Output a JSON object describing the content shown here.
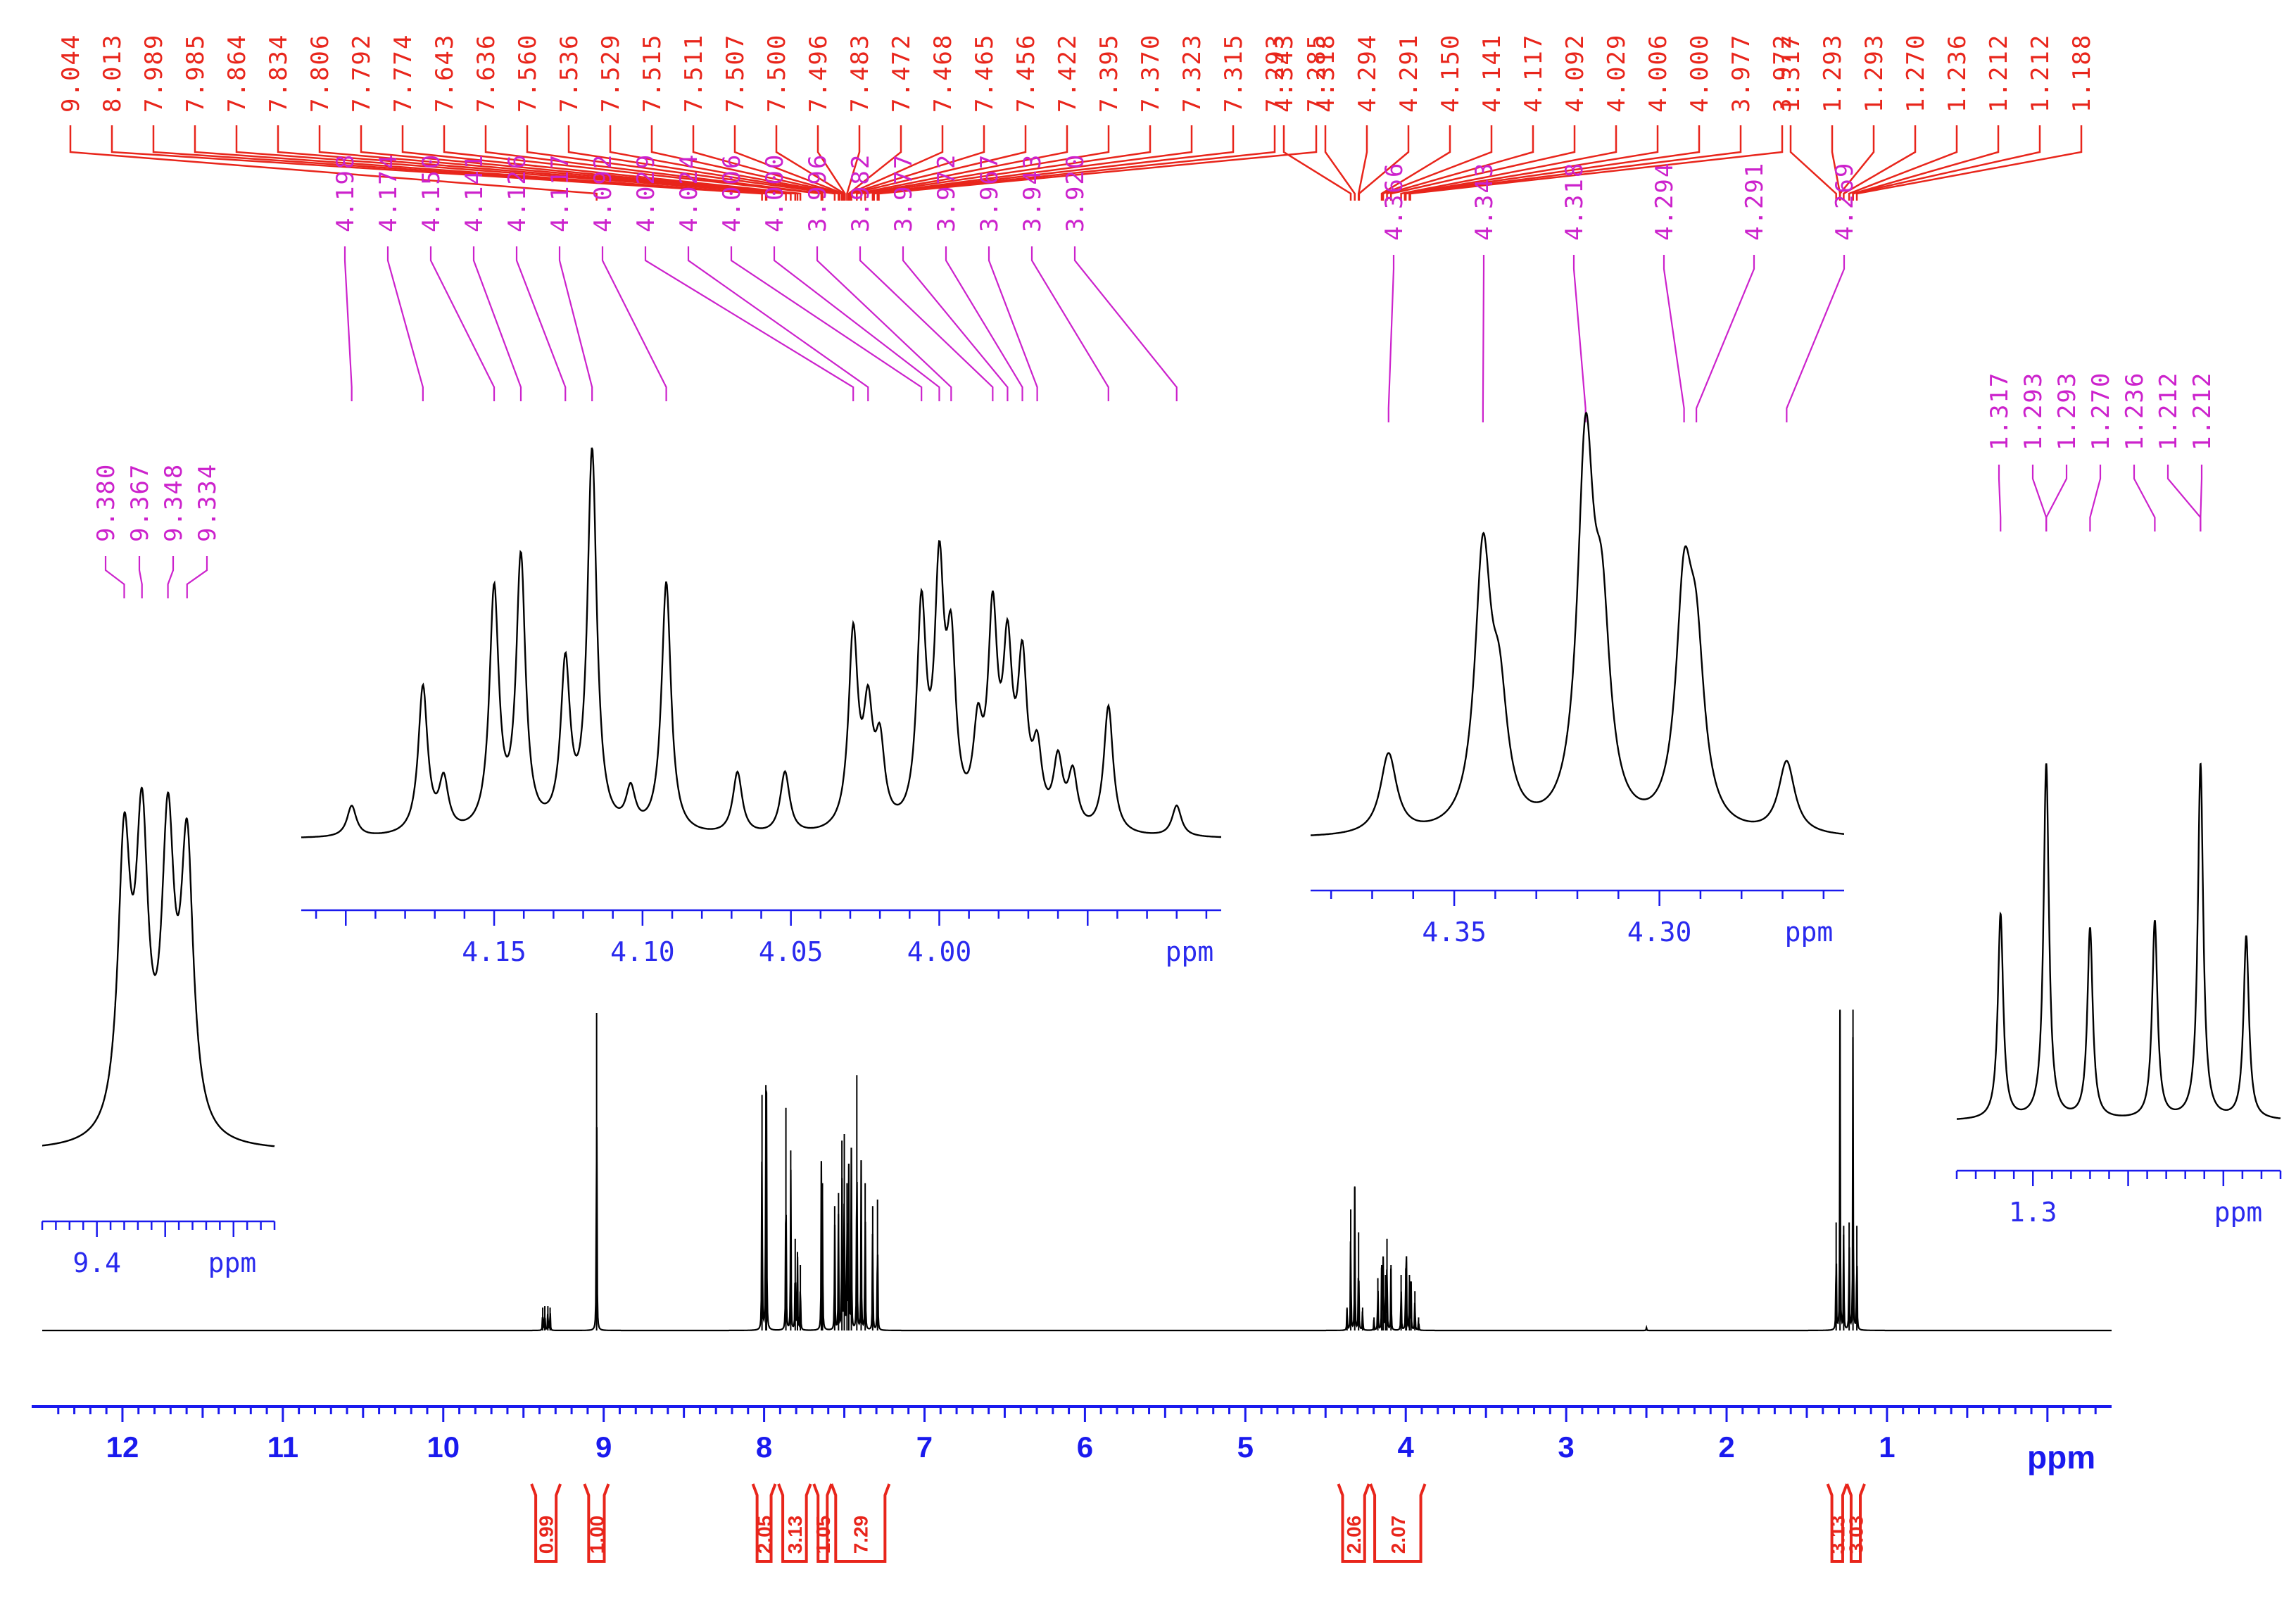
{
  "colors": {
    "spectrum": "#000000",
    "peak_labels": "#e8251b",
    "zoom_labels": "#cc22cc",
    "axis": "#1a1aee",
    "integral": "#e8251b"
  },
  "chart_data": {
    "type": "line",
    "title": "",
    "xlabel": "ppm",
    "x_reversed": true,
    "xlim": [
      12.5,
      -0.4
    ],
    "main_axis_ticks": [
      "12",
      "11",
      "10",
      "9",
      "8",
      "7",
      "6",
      "5",
      "4",
      "3",
      "2",
      "1"
    ],
    "peak_picking": {
      "group1": [
        "9.044",
        "8.013",
        "7.989",
        "7.985",
        "7.864",
        "7.834",
        "7.806",
        "7.792",
        "7.774",
        "7.643",
        "7.636",
        "7.560",
        "7.536",
        "7.529",
        "7.515",
        "7.511",
        "7.507",
        "7.500",
        "7.496",
        "7.483",
        "7.472",
        "7.468",
        "7.465",
        "7.456",
        "7.422",
        "7.395",
        "7.370",
        "7.323",
        "7.315",
        "7.293",
        "7.285"
      ],
      "group2": [
        "4.343",
        "4.318",
        "4.294",
        "4.291",
        "4.150",
        "4.141",
        "4.117",
        "4.092",
        "4.029",
        "4.006",
        "4.000",
        "3.977",
        "3.972"
      ],
      "group3": [
        "1.317",
        "1.293",
        "1.293",
        "1.270",
        "1.236",
        "1.212",
        "1.212",
        "1.188"
      ]
    },
    "peaks": [
      {
        "ppm": 9.38,
        "h": 0.07
      },
      {
        "ppm": 9.367,
        "h": 0.075
      },
      {
        "ppm": 9.348,
        "h": 0.075
      },
      {
        "ppm": 9.334,
        "h": 0.07
      },
      {
        "ppm": 9.044,
        "h": 0.97
      },
      {
        "ppm": 8.013,
        "h": 0.72
      },
      {
        "ppm": 7.989,
        "h": 0.75
      },
      {
        "ppm": 7.985,
        "h": 0.62
      },
      {
        "ppm": 7.864,
        "h": 0.68
      },
      {
        "ppm": 7.834,
        "h": 0.55
      },
      {
        "ppm": 7.806,
        "h": 0.28
      },
      {
        "ppm": 7.792,
        "h": 0.24
      },
      {
        "ppm": 7.774,
        "h": 0.2
      },
      {
        "ppm": 7.643,
        "h": 0.5
      },
      {
        "ppm": 7.636,
        "h": 0.45
      },
      {
        "ppm": 7.56,
        "h": 0.38
      },
      {
        "ppm": 7.536,
        "h": 0.42
      },
      {
        "ppm": 7.515,
        "h": 0.58
      },
      {
        "ppm": 7.5,
        "h": 0.6
      },
      {
        "ppm": 7.483,
        "h": 0.45
      },
      {
        "ppm": 7.472,
        "h": 0.5
      },
      {
        "ppm": 7.456,
        "h": 0.55
      },
      {
        "ppm": 7.422,
        "h": 0.78
      },
      {
        "ppm": 7.395,
        "h": 0.52
      },
      {
        "ppm": 7.37,
        "h": 0.45
      },
      {
        "ppm": 7.323,
        "h": 0.38
      },
      {
        "ppm": 7.293,
        "h": 0.4
      },
      {
        "ppm": 4.366,
        "h": 0.07
      },
      {
        "ppm": 4.343,
        "h": 0.37
      },
      {
        "ppm": 4.318,
        "h": 0.44
      },
      {
        "ppm": 4.294,
        "h": 0.3
      },
      {
        "ppm": 4.269,
        "h": 0.07
      },
      {
        "ppm": 4.198,
        "h": 0.04
      },
      {
        "ppm": 4.174,
        "h": 0.16
      },
      {
        "ppm": 4.15,
        "h": 0.2
      },
      {
        "ppm": 4.141,
        "h": 0.22
      },
      {
        "ppm": 4.126,
        "h": 0.17
      },
      {
        "ppm": 4.117,
        "h": 0.28
      },
      {
        "ppm": 4.092,
        "h": 0.2
      },
      {
        "ppm": 4.029,
        "h": 0.17
      },
      {
        "ppm": 4.0,
        "h": 0.19
      },
      {
        "ppm": 3.996,
        "h": 0.21
      },
      {
        "ppm": 3.977,
        "h": 0.17
      },
      {
        "ppm": 3.967,
        "h": 0.15
      },
      {
        "ppm": 3.943,
        "h": 0.12
      },
      {
        "ppm": 3.92,
        "h": 0.04
      },
      {
        "ppm": 2.5,
        "h": 0.01
      },
      {
        "ppm": 1.317,
        "h": 0.33
      },
      {
        "ppm": 1.293,
        "h": 0.98
      },
      {
        "ppm": 1.27,
        "h": 0.32
      },
      {
        "ppm": 1.236,
        "h": 0.33
      },
      {
        "ppm": 1.212,
        "h": 0.98
      },
      {
        "ppm": 1.188,
        "h": 0.32
      }
    ],
    "integrals": [
      {
        "value": "0.99",
        "from": 9.45,
        "to": 9.27
      },
      {
        "value": "1.00",
        "from": 9.12,
        "to": 8.97
      },
      {
        "value": "2.05",
        "from": 8.07,
        "to": 7.93
      },
      {
        "value": "3.13",
        "from": 7.91,
        "to": 7.71
      },
      {
        "value": "1.05",
        "from": 7.69,
        "to": 7.58
      },
      {
        "value": "7.29",
        "from": 7.58,
        "to": 7.22
      },
      {
        "value": "2.06",
        "from": 4.42,
        "to": 4.23
      },
      {
        "value": "2.07",
        "from": 4.22,
        "to": 3.88
      },
      {
        "value": "3.13",
        "from": 1.37,
        "to": 1.25
      },
      {
        "value": "3.03",
        "from": 1.25,
        "to": 1.14
      }
    ],
    "insets": [
      {
        "name": "inset-9.4",
        "xlim": [
          9.44,
          9.27
        ],
        "labeled_peaks": [
          "9.380",
          "9.367",
          "9.348",
          "9.334"
        ],
        "peaks": [
          {
            "ppm": 9.38,
            "h": 0.93
          },
          {
            "ppm": 9.367,
            "h": 0.96
          },
          {
            "ppm": 9.348,
            "h": 0.96
          },
          {
            "ppm": 9.334,
            "h": 0.93
          }
        ],
        "width": 0.0055,
        "axis_ticks": [
          "9.4"
        ],
        "unit": "ppm"
      },
      {
        "name": "inset-4.1",
        "xlim": [
          4.215,
          3.905
        ],
        "labeled_peaks": [
          "4.198",
          "4.174",
          "4.150",
          "4.141",
          "4.126",
          "4.117",
          "4.092",
          "4.029",
          "4.024",
          "4.006",
          "4.000",
          "3.996",
          "3.982",
          "3.977",
          "3.972",
          "3.967",
          "3.943",
          "3.920"
        ],
        "peaks": [
          {
            "ppm": 4.198,
            "h": 0.08
          },
          {
            "ppm": 4.174,
            "h": 0.38
          },
          {
            "ppm": 4.167,
            "h": 0.13
          },
          {
            "ppm": 4.15,
            "h": 0.62
          },
          {
            "ppm": 4.141,
            "h": 0.7
          },
          {
            "ppm": 4.126,
            "h": 0.42
          },
          {
            "ppm": 4.117,
            "h": 0.98
          },
          {
            "ppm": 4.104,
            "h": 0.1
          },
          {
            "ppm": 4.092,
            "h": 0.65
          },
          {
            "ppm": 4.068,
            "h": 0.16
          },
          {
            "ppm": 4.052,
            "h": 0.16
          },
          {
            "ppm": 4.029,
            "h": 0.5
          },
          {
            "ppm": 4.024,
            "h": 0.28
          },
          {
            "ppm": 4.02,
            "h": 0.2
          },
          {
            "ppm": 4.006,
            "h": 0.55
          },
          {
            "ppm": 4.0,
            "h": 0.62
          },
          {
            "ppm": 3.996,
            "h": 0.42
          },
          {
            "ppm": 3.987,
            "h": 0.22
          },
          {
            "ppm": 3.982,
            "h": 0.52
          },
          {
            "ppm": 3.977,
            "h": 0.42
          },
          {
            "ppm": 3.972,
            "h": 0.4
          },
          {
            "ppm": 3.967,
            "h": 0.18
          },
          {
            "ppm": 3.96,
            "h": 0.17
          },
          {
            "ppm": 3.955,
            "h": 0.14
          },
          {
            "ppm": 3.943,
            "h": 0.33
          },
          {
            "ppm": 3.92,
            "h": 0.08
          }
        ],
        "width": 0.0019,
        "axis_ticks": [
          "4.15",
          "4.10",
          "4.05",
          "4.00"
        ],
        "unit": "ppm"
      },
      {
        "name": "inset-4.3",
        "xlim": [
          4.385,
          4.255
        ],
        "labeled_peaks": [
          "4.366",
          "4.343",
          "4.318",
          "4.294",
          "4.291",
          "4.269"
        ],
        "peaks": [
          {
            "ppm": 4.366,
            "h": 0.2
          },
          {
            "ppm": 4.343,
            "h": 0.67
          },
          {
            "ppm": 4.339,
            "h": 0.28
          },
          {
            "ppm": 4.318,
            "h": 0.92
          },
          {
            "ppm": 4.314,
            "h": 0.45
          },
          {
            "ppm": 4.294,
            "h": 0.55
          },
          {
            "ppm": 4.291,
            "h": 0.38
          },
          {
            "ppm": 4.269,
            "h": 0.18
          }
        ],
        "width": 0.0024,
        "axis_ticks": [
          "4.35",
          "4.30"
        ],
        "unit": "ppm"
      },
      {
        "name": "inset-1.3",
        "xlim": [
          1.34,
          1.17
        ],
        "labeled_peaks": [
          "1.317",
          "1.293",
          "1.293",
          "1.270",
          "1.236",
          "1.212",
          "1.212"
        ],
        "peaks": [
          {
            "ppm": 1.317,
            "h": 0.56
          },
          {
            "ppm": 1.293,
            "h": 0.97
          },
          {
            "ppm": 1.27,
            "h": 0.52
          },
          {
            "ppm": 1.236,
            "h": 0.54
          },
          {
            "ppm": 1.212,
            "h": 0.97
          },
          {
            "ppm": 1.188,
            "h": 0.5
          }
        ],
        "width": 0.0017,
        "axis_ticks": [
          "1.3"
        ],
        "unit": "ppm"
      }
    ]
  }
}
